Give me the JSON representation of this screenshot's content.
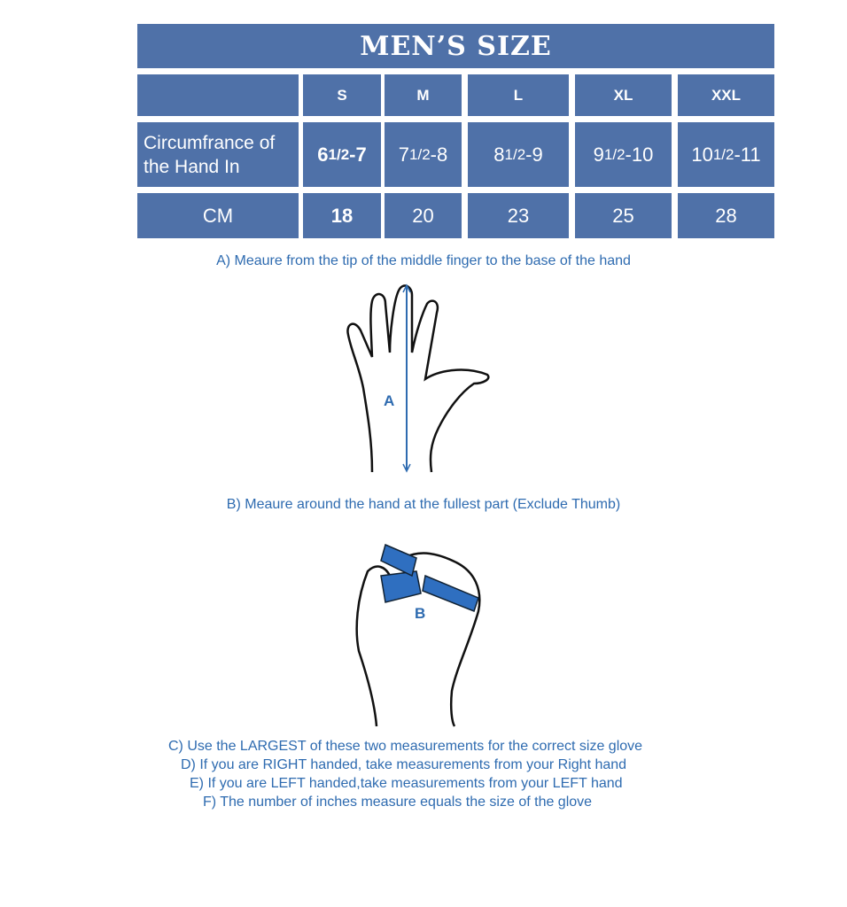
{
  "title": "MEN’S SIZE",
  "sizes": [
    "S",
    "M",
    "L",
    "XL",
    "XXL"
  ],
  "row_inch_label": "Circumfrance of the Hand In",
  "row_inch_values": [
    {
      "whole": "6 ",
      "frac": "1/2",
      "rest": "-7"
    },
    {
      "whole": "7",
      "frac": "1/2",
      "rest": "-8"
    },
    {
      "whole": "8",
      "frac": "1/2",
      "rest": " -9"
    },
    {
      "whole": "9",
      "frac": "1/2",
      "rest": " -10"
    },
    {
      "whole": "10",
      "frac": "1/2",
      "rest": "-11"
    }
  ],
  "row_cm_label": "CM",
  "row_cm_values": [
    "18",
    "20",
    "23",
    "25",
    "28"
  ],
  "step_a": "A) Meaure from the tip of the middle finger to the base of the hand",
  "label_a": "A",
  "step_b": "B) Meaure around the hand at the fullest part (Exclude Thumb)",
  "label_b": "B",
  "notes": [
    "C) Use the LARGEST of these two measurements for the correct size glove",
    "D) If you are RIGHT handed, take measurements from your Right hand",
    "E) If you are LEFT handed,take measurements from your LEFT hand",
    "F) The number of inches measure equals the size of the glove"
  ],
  "colors": {
    "table": "#4f71a8",
    "text": "#2e6bb0"
  }
}
